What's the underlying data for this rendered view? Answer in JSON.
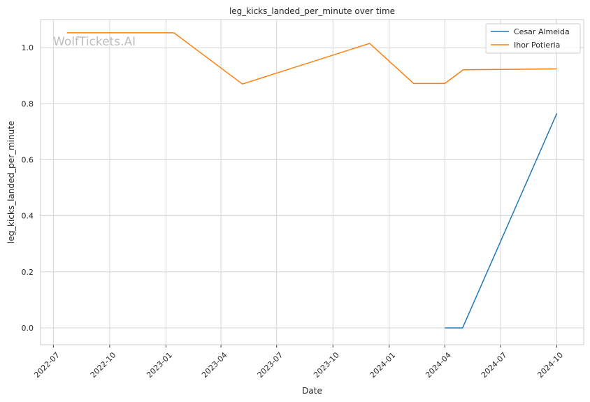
{
  "chart_data": {
    "type": "line",
    "title": "leg_kicks_landed_per_minute over time",
    "xlabel": "Date",
    "ylabel": "leg_kicks_landed_per_minute",
    "watermark": "WolfTickets.AI",
    "xlim": [
      "2022-06-10",
      "2024-11-14"
    ],
    "ylim": [
      -0.06,
      1.1
    ],
    "x_ticks": [
      {
        "date": "2022-07-01",
        "label": "2022-07"
      },
      {
        "date": "2022-10-01",
        "label": "2022-10"
      },
      {
        "date": "2023-01-01",
        "label": "2023-01"
      },
      {
        "date": "2023-04-01",
        "label": "2023-04"
      },
      {
        "date": "2023-07-01",
        "label": "2023-07"
      },
      {
        "date": "2023-10-01",
        "label": "2023-10"
      },
      {
        "date": "2024-01-01",
        "label": "2024-01"
      },
      {
        "date": "2024-04-01",
        "label": "2024-04"
      },
      {
        "date": "2024-07-01",
        "label": "2024-07"
      },
      {
        "date": "2024-10-01",
        "label": "2024-10"
      }
    ],
    "y_ticks": [
      {
        "value": 0.0,
        "label": "0.0"
      },
      {
        "value": 0.2,
        "label": "0.2"
      },
      {
        "value": 0.4,
        "label": "0.4"
      },
      {
        "value": 0.6,
        "label": "0.6"
      },
      {
        "value": 0.8,
        "label": "0.8"
      },
      {
        "value": 1.0,
        "label": "1.0"
      }
    ],
    "grid": true,
    "legend_position": "top-right",
    "series": [
      {
        "name": "Cesar Almeida",
        "color": "#1f77b4",
        "points": [
          {
            "x": "2024-04-01",
            "y": 0.0
          },
          {
            "x": "2024-04-30",
            "y": 0.0
          },
          {
            "x": "2024-10-01",
            "y": 0.765
          }
        ]
      },
      {
        "name": "Ihor Potieria",
        "color": "#ff7f0e",
        "points": [
          {
            "x": "2022-07-23",
            "y": 1.053
          },
          {
            "x": "2023-01-14",
            "y": 1.053
          },
          {
            "x": "2023-05-06",
            "y": 0.87
          },
          {
            "x": "2023-11-30",
            "y": 1.015
          },
          {
            "x": "2024-02-10",
            "y": 0.872
          },
          {
            "x": "2024-04-01",
            "y": 0.872
          },
          {
            "x": "2024-05-01",
            "y": 0.921
          },
          {
            "x": "2024-10-01",
            "y": 0.924
          }
        ]
      }
    ]
  }
}
